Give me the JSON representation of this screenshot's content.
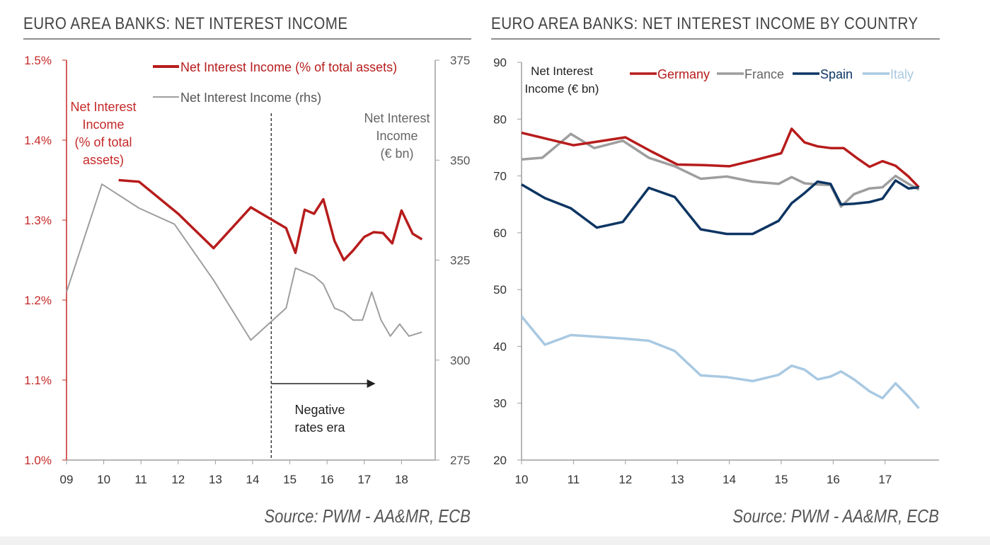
{
  "left_panel": {
    "title": "EURO AREA BANKS: NET INTEREST INCOME",
    "source": "Source: PWM - AA&MR, ECB"
  },
  "right_panel": {
    "title": "EURO AREA BANKS: NET INTEREST INCOME BY COUNTRY",
    "source": "Source: PWM - AA&MR, ECB"
  },
  "colors": {
    "red": "#b71c1c",
    "gray": "#9e9e9e",
    "navy": "#0d3563",
    "lightblue": "#a9c9e2",
    "axis_left": "#c62828",
    "text": "#333333"
  },
  "chart_data": [
    {
      "type": "line",
      "title": "EURO AREA BANKS: NET INTEREST INCOME",
      "x_ticks": [
        "09",
        "10",
        "11",
        "12",
        "13",
        "14",
        "15",
        "16",
        "17",
        "18"
      ],
      "xlim": [
        9,
        19.0
      ],
      "y_left": {
        "label": [
          "Net Interest",
          "Income",
          "(% of total",
          "assets)"
        ],
        "ticks": [
          "1.0%",
          "1.1%",
          "1.2%",
          "1.3%",
          "1.4%",
          "1.5%"
        ],
        "ylim": [
          1.0,
          1.5
        ]
      },
      "y_right": {
        "label": [
          "Net Interest",
          "Income",
          "(€ bn)"
        ],
        "ticks": [
          "275",
          "300",
          "325",
          "350",
          "375"
        ],
        "ylim": [
          275,
          375
        ]
      },
      "legend": [
        "Net Interest Income (% of total assets)",
        "Net Interest Income (rhs)"
      ],
      "annotation": {
        "line1": "Negative",
        "line2": "rates era",
        "x_start": 14.5,
        "x_end": 17.3
      },
      "divider_x": 14.5,
      "series": [
        {
          "name": "Net Interest Income (% of total assets)",
          "axis": "left",
          "color": "#b71c1c",
          "points": [
            [
              10.4,
              1.35
            ],
            [
              10.95,
              1.348
            ],
            [
              12.0,
              1.308
            ],
            [
              12.95,
              1.265
            ],
            [
              13.95,
              1.316
            ],
            [
              14.9,
              1.29
            ],
            [
              15.15,
              1.259
            ],
            [
              15.4,
              1.313
            ],
            [
              15.65,
              1.308
            ],
            [
              15.9,
              1.326
            ],
            [
              16.2,
              1.274
            ],
            [
              16.45,
              1.25
            ],
            [
              16.7,
              1.262
            ],
            [
              17.0,
              1.279
            ],
            [
              17.25,
              1.285
            ],
            [
              17.5,
              1.284
            ],
            [
              17.75,
              1.271
            ],
            [
              18.0,
              1.312
            ],
            [
              18.3,
              1.283
            ],
            [
              18.55,
              1.276
            ]
          ]
        },
        {
          "name": "Net Interest Income (rhs)",
          "axis": "right",
          "color": "#9e9e9e",
          "points": [
            [
              9.0,
              317
            ],
            [
              9.95,
              344
            ],
            [
              10.95,
              338
            ],
            [
              11.9,
              334
            ],
            [
              12.95,
              320
            ],
            [
              13.95,
              305
            ],
            [
              14.9,
              313
            ],
            [
              15.15,
              323
            ],
            [
              15.4,
              322
            ],
            [
              15.65,
              321
            ],
            [
              15.9,
              319
            ],
            [
              16.2,
              313
            ],
            [
              16.45,
              312
            ],
            [
              16.7,
              310
            ],
            [
              16.95,
              310
            ],
            [
              17.2,
              317
            ],
            [
              17.45,
              310
            ],
            [
              17.7,
              306
            ],
            [
              17.95,
              309
            ],
            [
              18.2,
              306
            ],
            [
              18.55,
              307
            ]
          ]
        }
      ]
    },
    {
      "type": "line",
      "title": "EURO AREA BANKS: NET INTEREST INCOME BY COUNTRY",
      "x_ticks": [
        "10",
        "11",
        "12",
        "13",
        "14",
        "15",
        "16",
        "17"
      ],
      "xlim": [
        10,
        18.2
      ],
      "y": {
        "label": [
          "Net Interest",
          "Income (€ bn)"
        ],
        "ticks": [
          "20",
          "30",
          "40",
          "50",
          "60",
          "70",
          "80",
          "90"
        ],
        "ylim": [
          20,
          90
        ]
      },
      "legend": [
        "Germany",
        "France",
        "Spain",
        "Italy"
      ],
      "series": [
        {
          "name": "Germany",
          "color": "#b71c1c",
          "points": [
            [
              10.0,
              77.6
            ],
            [
              10.5,
              76.5
            ],
            [
              11.0,
              75.4
            ],
            [
              11.5,
              76.1
            ],
            [
              12.0,
              76.8
            ],
            [
              12.5,
              74.3
            ],
            [
              13.0,
              72.0
            ],
            [
              13.5,
              71.9
            ],
            [
              14.0,
              71.7
            ],
            [
              14.5,
              72.8
            ],
            [
              15.0,
              74.0
            ],
            [
              15.2,
              78.3
            ],
            [
              15.45,
              75.9
            ],
            [
              15.7,
              75.2
            ],
            [
              15.95,
              74.9
            ],
            [
              16.2,
              74.9
            ],
            [
              16.45,
              73.2
            ],
            [
              16.7,
              71.6
            ],
            [
              16.95,
              72.6
            ],
            [
              17.2,
              71.8
            ],
            [
              17.45,
              69.9
            ],
            [
              17.65,
              68.0
            ]
          ]
        },
        {
          "name": "France",
          "color": "#9e9e9e",
          "points": [
            [
              10.0,
              72.9
            ],
            [
              10.4,
              73.2
            ],
            [
              10.95,
              77.4
            ],
            [
              11.4,
              74.9
            ],
            [
              11.95,
              76.2
            ],
            [
              12.45,
              73.2
            ],
            [
              12.95,
              71.7
            ],
            [
              13.45,
              69.5
            ],
            [
              13.95,
              69.9
            ],
            [
              14.45,
              69.0
            ],
            [
              14.95,
              68.6
            ],
            [
              15.2,
              69.8
            ],
            [
              15.45,
              68.7
            ],
            [
              15.7,
              68.5
            ],
            [
              15.95,
              68.4
            ],
            [
              16.15,
              64.6
            ],
            [
              16.4,
              66.8
            ],
            [
              16.7,
              67.8
            ],
            [
              16.95,
              68.0
            ],
            [
              17.2,
              70.0
            ],
            [
              17.45,
              68.6
            ],
            [
              17.65,
              67.6
            ]
          ]
        },
        {
          "name": "Spain",
          "color": "#0d3563",
          "points": [
            [
              10.0,
              68.5
            ],
            [
              10.45,
              66.1
            ],
            [
              10.95,
              64.3
            ],
            [
              11.45,
              60.9
            ],
            [
              11.95,
              61.9
            ],
            [
              12.45,
              67.9
            ],
            [
              12.95,
              66.3
            ],
            [
              13.45,
              60.6
            ],
            [
              13.95,
              59.8
            ],
            [
              14.45,
              59.8
            ],
            [
              14.95,
              62.1
            ],
            [
              15.2,
              65.2
            ],
            [
              15.45,
              67.0
            ],
            [
              15.7,
              69.0
            ],
            [
              15.95,
              68.6
            ],
            [
              16.15,
              65.0
            ],
            [
              16.4,
              65.1
            ],
            [
              16.7,
              65.4
            ],
            [
              16.95,
              66.0
            ],
            [
              17.2,
              69.2
            ],
            [
              17.45,
              67.8
            ],
            [
              17.65,
              68.0
            ]
          ]
        },
        {
          "name": "Italy",
          "color": "#a9c9e2",
          "points": [
            [
              10.0,
              45.3
            ],
            [
              10.45,
              40.3
            ],
            [
              10.95,
              42.0
            ],
            [
              11.45,
              41.7
            ],
            [
              11.95,
              41.4
            ],
            [
              12.45,
              41.0
            ],
            [
              12.95,
              39.2
            ],
            [
              13.45,
              34.9
            ],
            [
              13.95,
              34.6
            ],
            [
              14.45,
              33.9
            ],
            [
              14.95,
              35.0
            ],
            [
              15.2,
              36.6
            ],
            [
              15.45,
              35.9
            ],
            [
              15.7,
              34.2
            ],
            [
              15.95,
              34.7
            ],
            [
              16.15,
              35.6
            ],
            [
              16.4,
              34.2
            ],
            [
              16.7,
              32.1
            ],
            [
              16.95,
              30.9
            ],
            [
              17.2,
              33.5
            ],
            [
              17.45,
              31.2
            ],
            [
              17.65,
              29.1
            ]
          ]
        }
      ]
    }
  ]
}
